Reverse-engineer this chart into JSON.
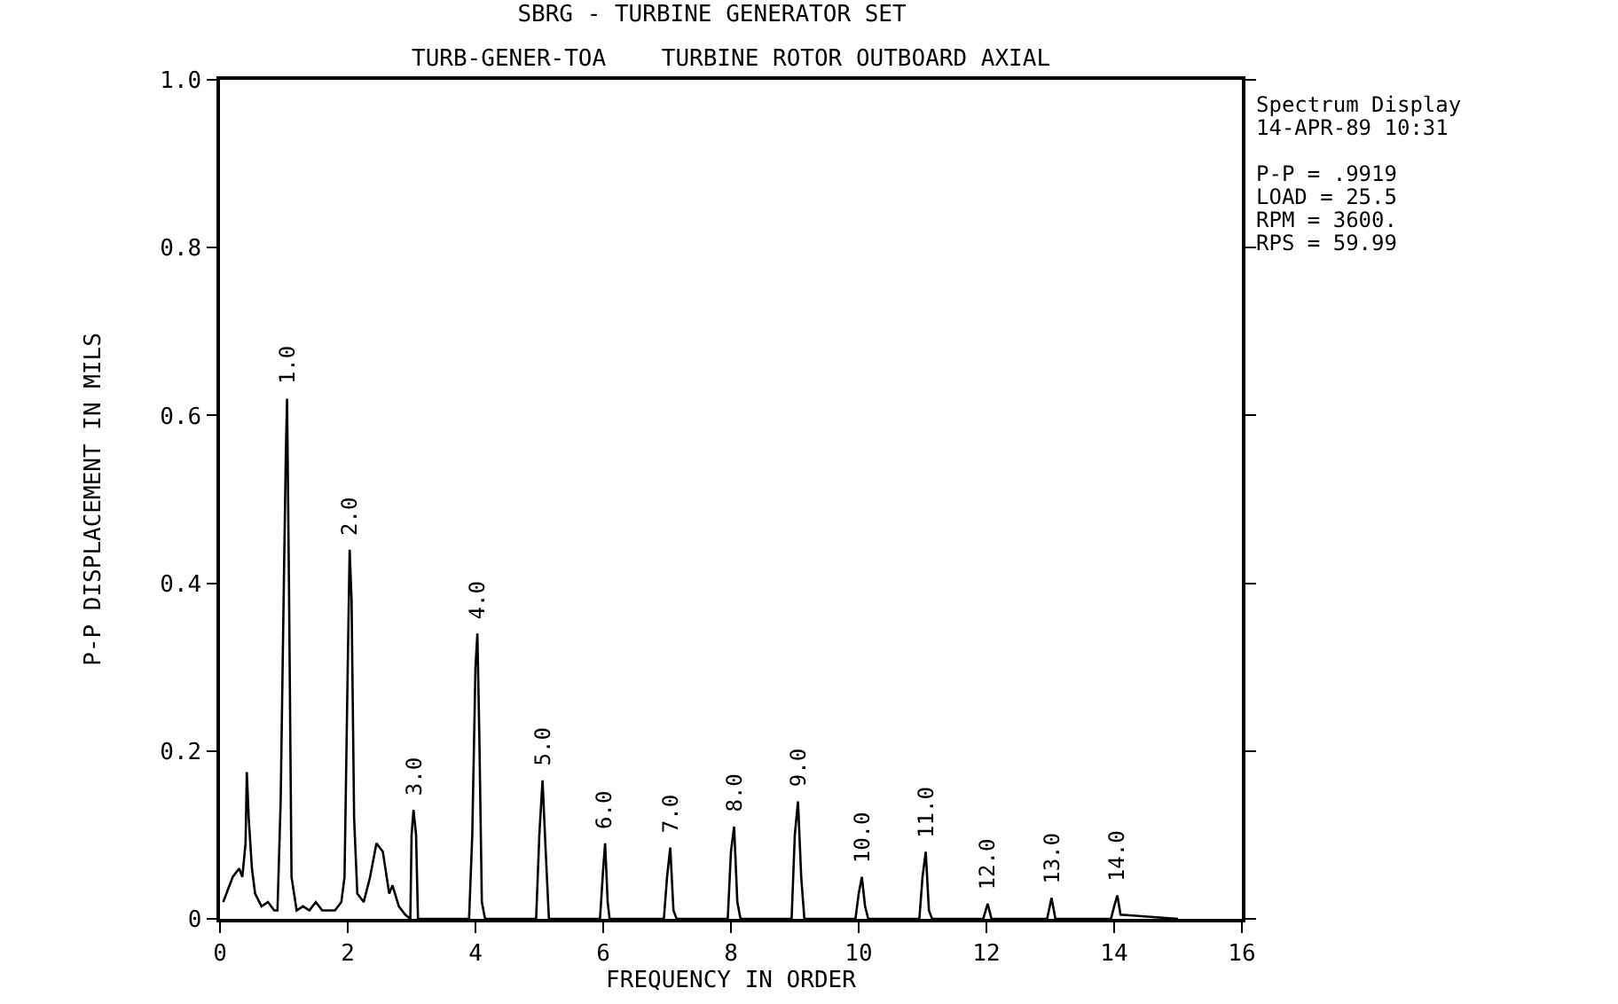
{
  "chart_data": {
    "type": "line",
    "title": "SBRG - TURBINE GENERATOR SET",
    "subtitle": "TURB-GENER-TOA    TURBINE ROTOR OUTBOARD AXIAL",
    "xlabel": "FREQUENCY IN ORDER",
    "ylabel": "P-P DISPLACEMENT IN MILS",
    "xlim": [
      0,
      16
    ],
    "xticks": [
      0,
      2,
      4,
      6,
      8,
      10,
      12,
      14,
      16
    ],
    "ylim": [
      0,
      1.0
    ],
    "yticks": [
      {
        "value": 0,
        "label": "0"
      },
      0.2,
      0.4,
      0.6,
      0.8,
      {
        "value": 1.0,
        "label": "1.0"
      }
    ],
    "marker": "none",
    "line_style": "solid",
    "series": [
      {
        "color": "#000000",
        "x": [
          0.05,
          0.1,
          0.2,
          0.3,
          0.35,
          0.4,
          0.42,
          0.45,
          0.5,
          0.55,
          0.65,
          0.75,
          0.85,
          0.9,
          0.95,
          1.0,
          1.03,
          1.05,
          1.08,
          1.12,
          1.2,
          1.3,
          1.4,
          1.5,
          1.6,
          1.7,
          1.8,
          1.9,
          1.95,
          2.0,
          2.03,
          2.06,
          2.1,
          2.15,
          2.25,
          2.35,
          2.45,
          2.55,
          2.65,
          2.7,
          2.8,
          2.9,
          2.98,
          3.0,
          3.03,
          3.07,
          3.1,
          3.9,
          3.95,
          4.0,
          4.03,
          4.06,
          4.1,
          4.15,
          4.95,
          5.0,
          5.05,
          5.1,
          5.15,
          5.95,
          6.0,
          6.03,
          6.07,
          6.1,
          6.95,
          7.0,
          7.05,
          7.1,
          7.15,
          7.95,
          8.0,
          8.05,
          8.1,
          8.15,
          8.95,
          9.0,
          9.05,
          9.1,
          9.15,
          9.95,
          10.0,
          10.05,
          10.1,
          10.15,
          10.95,
          11.0,
          11.05,
          11.1,
          11.15,
          11.95,
          12.02,
          12.08,
          12.95,
          13.02,
          13.08,
          13.95,
          14.0,
          14.05,
          14.1,
          15.0
        ],
        "values": [
          0.02,
          0.03,
          0.05,
          0.06,
          0.05,
          0.09,
          0.175,
          0.12,
          0.06,
          0.03,
          0.015,
          0.02,
          0.01,
          0.01,
          0.14,
          0.4,
          0.55,
          0.62,
          0.4,
          0.05,
          0.01,
          0.015,
          0.01,
          0.02,
          0.01,
          0.01,
          0.01,
          0.02,
          0.05,
          0.3,
          0.44,
          0.38,
          0.12,
          0.03,
          0.02,
          0.05,
          0.09,
          0.08,
          0.03,
          0.04,
          0.015,
          0.005,
          0.0,
          0.1,
          0.13,
          0.1,
          0.0,
          0.0,
          0.1,
          0.3,
          0.34,
          0.22,
          0.02,
          0.0,
          0.0,
          0.1,
          0.165,
          0.08,
          0.0,
          0.0,
          0.06,
          0.09,
          0.02,
          0.0,
          0.0,
          0.05,
          0.085,
          0.01,
          0.0,
          0.0,
          0.08,
          0.11,
          0.02,
          0.0,
          0.0,
          0.1,
          0.14,
          0.05,
          0.0,
          0.0,
          0.03,
          0.05,
          0.015,
          0.0,
          0.0,
          0.05,
          0.08,
          0.01,
          0.0,
          0.0,
          0.018,
          0.0,
          0.0,
          0.025,
          0.0,
          0.0,
          0.015,
          0.028,
          0.005,
          0.0
        ]
      }
    ],
    "annotations": [
      {
        "text": "1.0",
        "x": 1.05,
        "y": 0.62
      },
      {
        "text": "2.0",
        "x": 2.03,
        "y": 0.44
      },
      {
        "text": "3.0",
        "x": 3.03,
        "y": 0.13
      },
      {
        "text": "4.0",
        "x": 4.03,
        "y": 0.34
      },
      {
        "text": "5.0",
        "x": 5.05,
        "y": 0.165
      },
      {
        "text": "6.0",
        "x": 6.03,
        "y": 0.09
      },
      {
        "text": "7.0",
        "x": 7.05,
        "y": 0.085
      },
      {
        "text": "8.0",
        "x": 8.05,
        "y": 0.11
      },
      {
        "text": "9.0",
        "x": 9.05,
        "y": 0.14
      },
      {
        "text": "10.0",
        "x": 10.05,
        "y": 0.05
      },
      {
        "text": "11.0",
        "x": 11.05,
        "y": 0.08
      },
      {
        "text": "12.0",
        "x": 12.02,
        "y": 0.018
      },
      {
        "text": "13.0",
        "x": 13.02,
        "y": 0.025
      },
      {
        "text": "14.0",
        "x": 14.05,
        "y": 0.028
      },
      "Spectrum Display",
      "14-APR-89 10:31",
      "P-P = .9919",
      "LOAD = 25.5",
      "RPM = 3600.",
      "RPS = 59.99"
    ]
  }
}
